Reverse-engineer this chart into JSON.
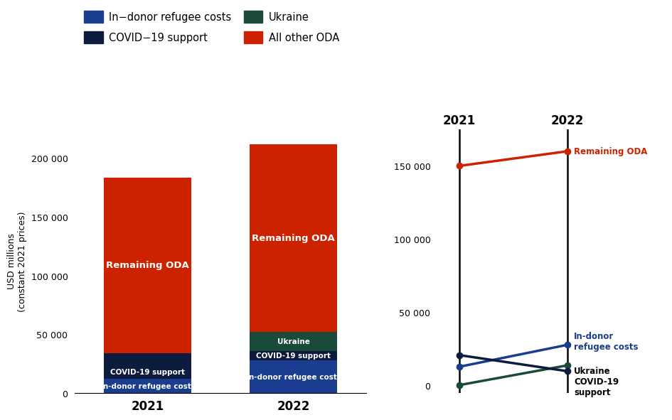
{
  "bar_categories": [
    "2021",
    "2022"
  ],
  "bar_data": {
    "in_donor_refugee": [
      12000,
      28000
    ],
    "covid19": [
      22000,
      8000
    ],
    "ukraine": [
      0,
      16000
    ],
    "remaining_oda": [
      150000,
      160000
    ]
  },
  "line_data": {
    "remaining_oda": [
      150000,
      160000
    ],
    "in_donor_refugee": [
      13000,
      28000
    ],
    "ukraine": [
      500,
      14000
    ],
    "covid19": [
      21000,
      10000
    ]
  },
  "colors": {
    "in_donor_refugee": "#1a3d8f",
    "covid19": "#0d1b3e",
    "ukraine": "#1a4a3a",
    "remaining_oda": "#cc2200"
  },
  "ylabel": "USD millions\n(constant 2021 prices)",
  "ylim_bar": [
    0,
    225000
  ],
  "ylim_line": [
    -5000,
    175000
  ],
  "legend_labels": {
    "in_donor_refugee": "In−donor refugee costs",
    "covid19": "COVID−19 support",
    "ukraine": "Ukraine",
    "remaining_oda": "All other ODA"
  },
  "bar_labels": {
    "in_donor_refugee": "In-donor refugee costs",
    "covid19": "COVID-19 support",
    "ukraine": "Ukraine",
    "remaining_oda": "Remaining ODA"
  },
  "line_labels": {
    "remaining_oda": "Remaining ODA",
    "in_donor_refugee": "In-donor\nrefugee costs",
    "ukraine": "Ukraine",
    "covid19": "COVID-19\nsupport"
  },
  "yticks_bar": [
    0,
    50000,
    100000,
    150000,
    200000
  ],
  "yticks_line": [
    0,
    50000,
    100000,
    150000
  ],
  "ytick_labels_bar": [
    "0",
    "50 000",
    "100 000",
    "150 000",
    "200 000"
  ],
  "ytick_labels_line": [
    "0",
    "50 000",
    "100 000",
    "150 000"
  ]
}
